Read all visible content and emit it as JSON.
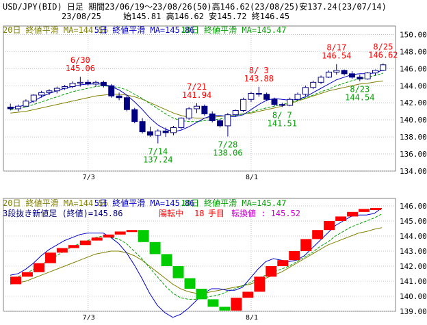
{
  "header": {
    "line1": "USD/JPY(BID) 日足 期間23/06/19～23/08/26(50)高146.62(23/08/25)安137.24(23/07/14)",
    "date": "23/08/25",
    "ohlc": "始145.81 高146.62 安145.72 終146.45"
  },
  "colors": {
    "ma20": "#808000",
    "ma5": "#0000cc",
    "ma10": "#00a000",
    "bull_brick": "#ff0000",
    "bear_brick": "#00cc00",
    "up_candle": "#ffffff",
    "down_candle": "#000080",
    "red_label": "#ff0000",
    "green_label": "#00a000",
    "magenta_label": "#cc00cc"
  },
  "chart_data": [
    {
      "type": "candlestick",
      "title": "USD/JPY(BID) 日足",
      "legend": [
        {
          "name": "20日 終値平滑",
          "ma_label": "MA=144.56",
          "color": "ma20"
        },
        {
          "name": "5日 終値平滑",
          "ma_label": "MA=145.86",
          "color": "ma5"
        },
        {
          "name": "10日 終値平滑",
          "ma_label": "MA=145.47",
          "color": "ma10"
        }
      ],
      "xticks": [
        "7/3",
        "8/1"
      ],
      "ylim": [
        134,
        151
      ],
      "yticks": [
        "150.00",
        "148.00",
        "146.00",
        "144.00",
        "142.00",
        "140.00",
        "138.00",
        "136.00",
        "134.00"
      ],
      "candles": [
        [
          141.5,
          141.9,
          141.1,
          141.3
        ],
        [
          141.3,
          141.8,
          141.0,
          141.6
        ],
        [
          141.6,
          142.4,
          141.5,
          142.2
        ],
        [
          142.2,
          143.0,
          142.0,
          142.9
        ],
        [
          142.9,
          143.4,
          142.6,
          143.2
        ],
        [
          143.2,
          143.6,
          142.9,
          143.4
        ],
        [
          143.4,
          143.9,
          143.1,
          143.7
        ],
        [
          143.7,
          144.1,
          143.5,
          143.9
        ],
        [
          143.9,
          144.5,
          143.7,
          144.3
        ],
        [
          144.3,
          145.06,
          143.9,
          144.4
        ],
        [
          144.4,
          144.7,
          144.0,
          144.2
        ],
        [
          144.2,
          144.6,
          143.9,
          144.4
        ],
        [
          144.4,
          144.6,
          143.8,
          144.0
        ],
        [
          144.0,
          144.2,
          142.6,
          142.8
        ],
        [
          142.8,
          143.2,
          142.3,
          142.6
        ],
        [
          142.6,
          142.9,
          141.0,
          141.2
        ],
        [
          141.2,
          141.4,
          139.6,
          139.8
        ],
        [
          139.8,
          140.2,
          138.4,
          138.6
        ],
        [
          138.6,
          139.2,
          138.0,
          138.2
        ],
        [
          138.2,
          138.9,
          137.24,
          138.7
        ],
        [
          138.7,
          139.1,
          138.0,
          138.5
        ],
        [
          138.5,
          139.3,
          138.2,
          139.1
        ],
        [
          139.1,
          140.3,
          138.9,
          140.2
        ],
        [
          140.2,
          141.5,
          140.0,
          141.3
        ],
        [
          141.3,
          141.94,
          140.8,
          141.6
        ],
        [
          141.6,
          141.8,
          140.5,
          140.7
        ],
        [
          140.7,
          141.0,
          139.7,
          139.9
        ],
        [
          139.9,
          140.1,
          139.1,
          139.3
        ],
        [
          139.3,
          140.8,
          138.06,
          140.6
        ],
        [
          140.6,
          141.2,
          140.4,
          141.1
        ],
        [
          141.1,
          142.6,
          140.9,
          142.4
        ],
        [
          142.4,
          143.3,
          142.1,
          143.1
        ],
        [
          143.1,
          143.88,
          142.7,
          143.0
        ],
        [
          143.0,
          143.2,
          142.2,
          142.4
        ],
        [
          142.4,
          142.6,
          141.6,
          141.8
        ],
        [
          141.8,
          142.0,
          141.51,
          141.7
        ],
        [
          141.7,
          142.6,
          141.6,
          142.4
        ],
        [
          142.4,
          143.2,
          142.2,
          143.0
        ],
        [
          143.0,
          144.0,
          142.8,
          143.8
        ],
        [
          143.8,
          144.6,
          143.6,
          144.4
        ],
        [
          144.4,
          145.2,
          144.2,
          145.0
        ],
        [
          145.0,
          145.8,
          144.9,
          145.6
        ],
        [
          145.6,
          146.54,
          145.3,
          145.8
        ],
        [
          145.8,
          145.9,
          145.2,
          145.4
        ],
        [
          145.4,
          145.7,
          144.8,
          145.0
        ],
        [
          145.0,
          145.3,
          144.54,
          144.8
        ],
        [
          144.8,
          145.6,
          144.7,
          145.5
        ],
        [
          145.5,
          145.9,
          145.2,
          145.81
        ],
        [
          145.81,
          146.62,
          145.72,
          146.45
        ]
      ],
      "ma5": [
        141.4,
        141.5,
        141.8,
        142.2,
        142.7,
        143.1,
        143.4,
        143.7,
        143.9,
        144.1,
        144.2,
        144.2,
        144.2,
        143.9,
        143.5,
        142.9,
        142.1,
        141.2,
        140.2,
        139.4,
        138.9,
        138.6,
        138.8,
        139.2,
        139.7,
        140.2,
        140.5,
        140.5,
        140.4,
        140.4,
        140.6,
        141.2,
        141.8,
        142.3,
        142.5,
        142.4,
        142.3,
        142.4,
        142.7,
        143.2,
        143.7,
        144.2,
        144.7,
        145.0,
        145.3,
        145.4,
        145.4,
        145.5,
        145.86
      ],
      "ma10": [
        141.2,
        141.3,
        141.5,
        141.8,
        142.1,
        142.4,
        142.7,
        143.0,
        143.3,
        143.5,
        143.7,
        143.9,
        144.0,
        143.9,
        143.8,
        143.5,
        143.0,
        142.5,
        141.9,
        141.3,
        140.7,
        140.2,
        139.9,
        139.8,
        139.8,
        139.9,
        140.0,
        140.1,
        140.3,
        140.5,
        140.7,
        140.9,
        141.2,
        141.4,
        141.6,
        141.8,
        142.0,
        142.3,
        142.6,
        142.9,
        143.3,
        143.6,
        144.0,
        144.3,
        144.6,
        144.8,
        145.0,
        145.2,
        145.47
      ],
      "ma20": [
        140.8,
        140.9,
        141.0,
        141.2,
        141.4,
        141.6,
        141.8,
        142.0,
        142.2,
        142.4,
        142.6,
        142.8,
        142.9,
        143.0,
        143.0,
        142.9,
        142.7,
        142.4,
        142.0,
        141.6,
        141.2,
        140.8,
        140.5,
        140.3,
        140.2,
        140.2,
        140.3,
        140.4,
        140.5,
        140.6,
        140.7,
        140.8,
        141.0,
        141.2,
        141.4,
        141.6,
        141.9,
        142.2,
        142.5,
        142.8,
        143.1,
        143.4,
        143.6,
        143.8,
        144.0,
        144.2,
        144.3,
        144.45,
        144.56
      ],
      "annotations": [
        {
          "label": "6/30",
          "value": "145.06",
          "i": 9,
          "side": "high"
        },
        {
          "label": "7/14",
          "value": "137.24",
          "i": 19,
          "side": "low"
        },
        {
          "label": "7/21",
          "value": "141.94",
          "i": 24,
          "side": "high"
        },
        {
          "label": "7/28",
          "value": "138.06",
          "i": 28,
          "side": "low"
        },
        {
          "label": "8/ 3",
          "value": "143.88",
          "i": 32,
          "side": "high"
        },
        {
          "label": "8/ 7",
          "value": "141.51",
          "i": 35,
          "side": "low"
        },
        {
          "label": "8/17",
          "value": "146.54",
          "i": 42,
          "side": "high"
        },
        {
          "label": "8/23",
          "value": "144.54",
          "i": 45,
          "side": "low"
        },
        {
          "label": "8/25",
          "value": "146.62",
          "i": 48,
          "side": "high"
        }
      ]
    },
    {
      "type": "three-line-break",
      "legend": [
        {
          "name": "20日 終値平滑",
          "ma_label": "MA=144.56",
          "color": "ma20"
        },
        {
          "name": "5日 終値平滑",
          "ma_label": "MA=145.86",
          "color": "ma5"
        },
        {
          "name": "10日 終値平滑",
          "ma_label": "MA=145.47",
          "color": "ma10"
        }
      ],
      "info": {
        "title": "3段抜き新値足 (終値)=145.86",
        "status": "陽転中",
        "count": "18",
        "count_unit": "手目",
        "reversal": "転換値 : 145.52"
      },
      "ylim": [
        139,
        146.5
      ],
      "yticks": [
        "146.00",
        "145.00",
        "144.00",
        "143.00",
        "142.00",
        "141.00",
        "140.00",
        "139.00"
      ],
      "xticks": [
        "7/3",
        "8/1"
      ],
      "bricks": [
        [
          140.8,
          141.3
        ],
        [
          141.3,
          141.6
        ],
        [
          141.6,
          142.2
        ],
        [
          142.2,
          142.9
        ],
        [
          142.9,
          143.2
        ],
        [
          143.2,
          143.4
        ],
        [
          143.4,
          143.7
        ],
        [
          143.7,
          143.9
        ],
        [
          143.9,
          144.1
        ],
        [
          144.1,
          144.3
        ],
        [
          144.3,
          144.4
        ],
        [
          144.4,
          143.6
        ],
        [
          143.6,
          142.8
        ],
        [
          142.8,
          142.0
        ],
        [
          142.0,
          141.2
        ],
        [
          141.2,
          140.5
        ],
        [
          140.5,
          139.8
        ],
        [
          139.8,
          139.3
        ],
        [
          139.3,
          139.05
        ],
        [
          139.05,
          139.9
        ],
        [
          139.9,
          140.3
        ],
        [
          140.3,
          141.3
        ],
        [
          141.3,
          142.0
        ],
        [
          142.0,
          142.4
        ],
        [
          142.4,
          143.0
        ],
        [
          143.0,
          143.8
        ],
        [
          143.8,
          144.4
        ],
        [
          144.4,
          145.0
        ],
        [
          145.0,
          145.3
        ],
        [
          145.3,
          145.6
        ],
        [
          145.6,
          145.8
        ],
        [
          145.8,
          145.86
        ]
      ]
    }
  ]
}
